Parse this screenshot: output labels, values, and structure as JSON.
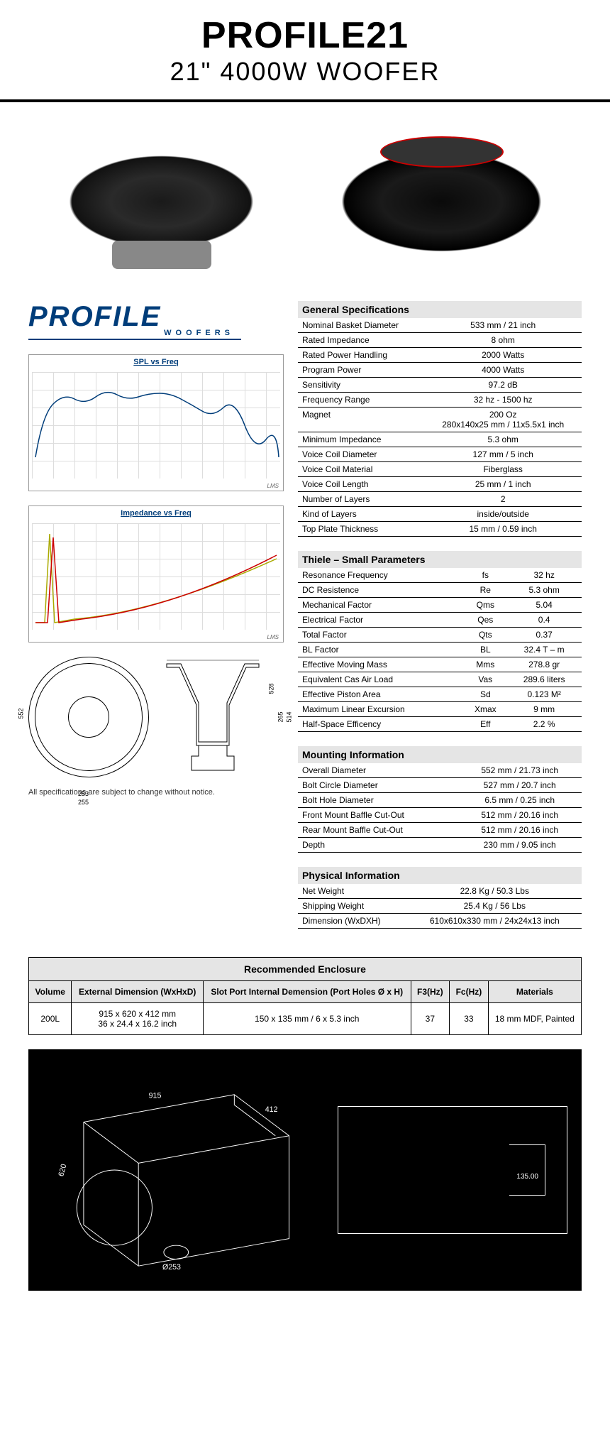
{
  "header": {
    "title": "PROFILE21",
    "subtitle": "21\" 4000W WOOFER"
  },
  "logo": {
    "text": "PROFILE",
    "sub": "WOOFERS"
  },
  "charts": {
    "spl": {
      "title": "SPL vs Freq",
      "footer": "LMS"
    },
    "imp": {
      "title": "Impedance vs Freq",
      "footer": "LMS"
    }
  },
  "disclaimer": "All specifications are subject to change without notice.",
  "general": {
    "title": "General Specifications",
    "rows": [
      {
        "label": "Nominal Basket Diameter",
        "value": "533 mm / 21 inch"
      },
      {
        "label": "Rated Impedance",
        "value": "8 ohm"
      },
      {
        "label": "Rated Power Handling",
        "value": "2000 Watts"
      },
      {
        "label": "Program Power",
        "value": "4000 Watts"
      },
      {
        "label": "Sensitivity",
        "value": "97.2 dB"
      },
      {
        "label": "Frequency Range",
        "value": "32 hz - 1500 hz"
      },
      {
        "label": "Magnet",
        "value": "200 Oz\n280x140x25 mm / 11x5.5x1 inch"
      },
      {
        "label": "Minimum Impedance",
        "value": "5.3 ohm"
      },
      {
        "label": "Voice Coil Diameter",
        "value": "127 mm / 5 inch"
      },
      {
        "label": "Voice Coil Material",
        "value": "Fiberglass"
      },
      {
        "label": "Voice Coil Length",
        "value": "25 mm / 1 inch"
      },
      {
        "label": "Number of Layers",
        "value": "2"
      },
      {
        "label": "Kind of Layers",
        "value": "inside/outside"
      },
      {
        "label": "Top Plate Thickness",
        "value": "15 mm / 0.59 inch"
      }
    ]
  },
  "thiele": {
    "title": "Thiele – Small Parameters",
    "rows": [
      {
        "label": "Resonance Frequency",
        "sym": "fs",
        "value": "32 hz"
      },
      {
        "label": "DC Resistence",
        "sym": "Re",
        "value": "5.3 ohm"
      },
      {
        "label": "Mechanical Factor",
        "sym": "Qms",
        "value": "5.04"
      },
      {
        "label": "Electrical Factor",
        "sym": "Qes",
        "value": "0.4"
      },
      {
        "label": "Total Factor",
        "sym": "Qts",
        "value": "0.37"
      },
      {
        "label": "BL Factor",
        "sym": "BL",
        "value": "32.4 T – m"
      },
      {
        "label": "Effective Moving Mass",
        "sym": "Mms",
        "value": "278.8 gr"
      },
      {
        "label": "Equivalent Cas Air Load",
        "sym": "Vas",
        "value": "289.6 liters"
      },
      {
        "label": "Effective Piston Area",
        "sym": "Sd",
        "value": "0.123 M²"
      },
      {
        "label": "Maximum Linear Excursion",
        "sym": "Xmax",
        "value": "9 mm"
      },
      {
        "label": "Half-Space Efficency",
        "sym": "Eff",
        "value": "2.2 %"
      }
    ]
  },
  "mounting": {
    "title": "Mounting Information",
    "rows": [
      {
        "label": "Overall Diameter",
        "value": "552 mm / 21.73 inch"
      },
      {
        "label": "Bolt Circle Diameter",
        "value": "527 mm / 20.7 inch"
      },
      {
        "label": "Bolt Hole Diameter",
        "value": "6.5 mm / 0.25 inch"
      },
      {
        "label": "Front Mount Baffle Cut-Out",
        "value": "512 mm / 20.16 inch"
      },
      {
        "label": "Rear Mount Baffle Cut-Out",
        "value": "512 mm / 20.16 inch"
      },
      {
        "label": "Depth",
        "value": "230 mm / 9.05 inch"
      }
    ]
  },
  "physical": {
    "title": "Physical Information",
    "rows": [
      {
        "label": "Net Weight",
        "value": "22.8 Kg / 50.3 Lbs"
      },
      {
        "label": "Shipping Weight",
        "value": "25.4 Kg / 56 Lbs"
      },
      {
        "label": "Dimension (WxDXH)",
        "value": "610x610x330 mm / 24x24x13 inch"
      }
    ]
  },
  "enclosure": {
    "title": "Recommended Enclosure",
    "headers": [
      "Volume",
      "External Dimension (WxHxD)",
      "Slot Port Internal Demension (Port Holes Ø x H)",
      "F3(Hz)",
      "Fc(Hz)",
      "Materials"
    ],
    "row": {
      "volume": "200L",
      "ext": "915 x 620 x 412 mm\n36 x 24.4 x 16.2 inch",
      "port": "150 x 135 mm  / 6 x 5.3 inch",
      "f3": "37",
      "fc": "33",
      "mat": "18 mm MDF, Painted"
    }
  },
  "diagram_dims": {
    "side_552": "552",
    "side_528": "528",
    "side_265": "265",
    "side_514": "514",
    "bottom_253": "253",
    "bottom_255": "255",
    "enc_915": "915",
    "enc_620": "620",
    "enc_412": "412",
    "enc_253": "Ø253",
    "enc_135": "135.00"
  }
}
